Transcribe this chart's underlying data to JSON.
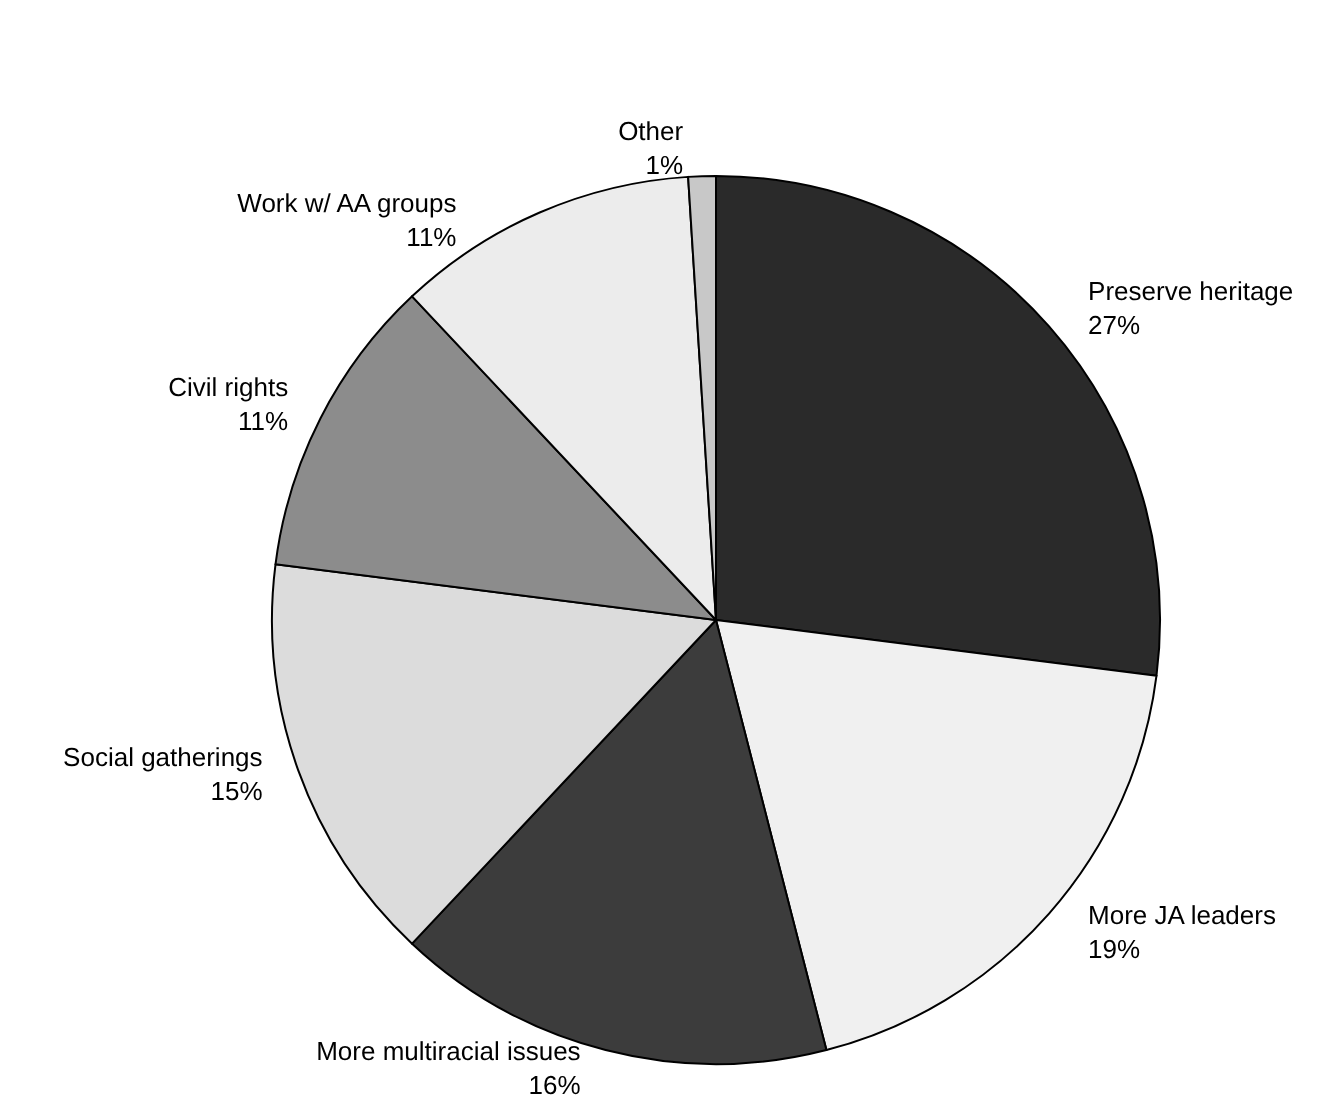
{
  "chart_data": {
    "type": "pie",
    "categories": [
      "Preserve heritage",
      "More JA leaders",
      "More multiracial issues",
      "Social gatherings",
      "Civil rights",
      "Work w/ AA groups",
      "Other"
    ],
    "values": [
      27,
      19,
      16,
      15,
      11,
      11,
      1
    ],
    "value_labels": [
      "27%",
      "19%",
      "16%",
      "15%",
      "11%",
      "11%",
      "1%"
    ],
    "colors": [
      "#2a2a2a",
      "#f0f0f0",
      "#3c3c3c",
      "#dcdcdc",
      "#8c8c8c",
      "#ececec",
      "#c8c8c8"
    ],
    "legend": false
  }
}
